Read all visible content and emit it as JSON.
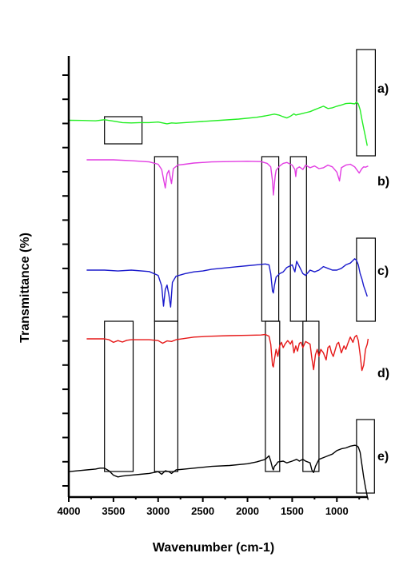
{
  "chart_data": {
    "type": "line",
    "title": "",
    "xlabel": "Wavenumber (cm-1)",
    "ylabel": "Transmittance (%)",
    "xlim": [
      4000,
      600
    ],
    "x_reversed": true,
    "x_ticks": [
      4000,
      3500,
      3000,
      2500,
      2000,
      1500,
      1000
    ],
    "y_tick_count": 18,
    "y_tick_labels_shown": false,
    "grid": false,
    "series": [
      {
        "name": "a)",
        "color": "#22ee22",
        "points": [
          [
            4000,
            0.25
          ],
          [
            3850,
            0.24
          ],
          [
            3700,
            0.22
          ],
          [
            3600,
            0.28
          ],
          [
            3500,
            0.2
          ],
          [
            3400,
            0.12
          ],
          [
            3300,
            0.1
          ],
          [
            3200,
            0.12
          ],
          [
            3100,
            0.12
          ],
          [
            3000,
            0.15
          ],
          [
            2950,
            0.1
          ],
          [
            2900,
            0.05
          ],
          [
            2850,
            0.1
          ],
          [
            2800,
            0.08
          ],
          [
            2700,
            0.12
          ],
          [
            2600,
            0.15
          ],
          [
            2500,
            0.18
          ],
          [
            2300,
            0.25
          ],
          [
            2100,
            0.32
          ],
          [
            1900,
            0.42
          ],
          [
            1800,
            0.5
          ],
          [
            1700,
            0.6
          ],
          [
            1650,
            0.55
          ],
          [
            1600,
            0.45
          ],
          [
            1560,
            0.38
          ],
          [
            1520,
            0.48
          ],
          [
            1480,
            0.62
          ],
          [
            1460,
            0.55
          ],
          [
            1400,
            0.62
          ],
          [
            1350,
            0.68
          ],
          [
            1300,
            0.74
          ],
          [
            1250,
            0.85
          ],
          [
            1200,
            0.95
          ],
          [
            1150,
            1.05
          ],
          [
            1100,
            0.92
          ],
          [
            1050,
            0.96
          ],
          [
            1000,
            1.05
          ],
          [
            950,
            1.12
          ],
          [
            900,
            1.2
          ],
          [
            850,
            1.22
          ],
          [
            800,
            1.18
          ],
          [
            780,
            1.28
          ],
          [
            760,
            1.18
          ],
          [
            740,
            0.85
          ],
          [
            720,
            0.3
          ],
          [
            700,
            -0.2
          ],
          [
            680,
            -0.7
          ],
          [
            660,
            -1.2
          ]
        ]
      },
      {
        "name": "b)",
        "color": "#e23ce2",
        "points": [
          [
            3800,
            0.0
          ],
          [
            3500,
            0.0
          ],
          [
            3300,
            -0.05
          ],
          [
            3100,
            -0.12
          ],
          [
            3000,
            -0.25
          ],
          [
            2960,
            -0.55
          ],
          [
            2920,
            -1.6
          ],
          [
            2900,
            -0.8
          ],
          [
            2880,
            -0.6
          ],
          [
            2850,
            -1.35
          ],
          [
            2830,
            -0.5
          ],
          [
            2780,
            -0.3
          ],
          [
            2700,
            -0.25
          ],
          [
            2600,
            -0.18
          ],
          [
            2400,
            -0.12
          ],
          [
            2200,
            -0.1
          ],
          [
            2000,
            -0.08
          ],
          [
            1850,
            -0.1
          ],
          [
            1780,
            -0.2
          ],
          [
            1740,
            -0.4
          ],
          [
            1720,
            -1.2
          ],
          [
            1710,
            -2.0
          ],
          [
            1700,
            -1.4
          ],
          [
            1690,
            -0.9
          ],
          [
            1680,
            -0.6
          ],
          [
            1640,
            -0.35
          ],
          [
            1600,
            -0.2
          ],
          [
            1560,
            -0.15
          ],
          [
            1500,
            -0.3
          ],
          [
            1470,
            -0.55
          ],
          [
            1460,
            -0.95
          ],
          [
            1450,
            -0.5
          ],
          [
            1420,
            -0.4
          ],
          [
            1380,
            -0.55
          ],
          [
            1350,
            -0.3
          ],
          [
            1300,
            -0.45
          ],
          [
            1250,
            -0.35
          ],
          [
            1200,
            -0.5
          ],
          [
            1150,
            -0.45
          ],
          [
            1100,
            -0.3
          ],
          [
            1050,
            -0.4
          ],
          [
            1000,
            -0.7
          ],
          [
            970,
            -1.2
          ],
          [
            950,
            -0.45
          ],
          [
            900,
            -0.3
          ],
          [
            850,
            -0.25
          ],
          [
            800,
            -0.4
          ],
          [
            750,
            -0.75
          ],
          [
            720,
            -0.5
          ],
          [
            700,
            -0.4
          ],
          [
            680,
            -0.42
          ],
          [
            650,
            -0.35
          ]
        ]
      },
      {
        "name": "c)",
        "color": "#1a1acc",
        "points": [
          [
            3800,
            0.0
          ],
          [
            3600,
            0.0
          ],
          [
            3450,
            -0.05
          ],
          [
            3300,
            0.0
          ],
          [
            3100,
            -0.08
          ],
          [
            3000,
            -0.3
          ],
          [
            2960,
            -0.9
          ],
          [
            2940,
            -2.05
          ],
          [
            2920,
            -1.1
          ],
          [
            2900,
            -0.85
          ],
          [
            2880,
            -1.4
          ],
          [
            2860,
            -2.1
          ],
          [
            2840,
            -0.7
          ],
          [
            2800,
            -0.35
          ],
          [
            2700,
            -0.2
          ],
          [
            2600,
            -0.1
          ],
          [
            2500,
            -0.05
          ],
          [
            2400,
            0.05
          ],
          [
            2300,
            0.1
          ],
          [
            2200,
            0.15
          ],
          [
            2100,
            0.2
          ],
          [
            2000,
            0.25
          ],
          [
            1900,
            0.3
          ],
          [
            1800,
            0.35
          ],
          [
            1760,
            0.3
          ],
          [
            1740,
            -0.2
          ],
          [
            1720,
            -1.2
          ],
          [
            1710,
            -1.3
          ],
          [
            1700,
            -0.9
          ],
          [
            1680,
            -0.4
          ],
          [
            1640,
            -0.2
          ],
          [
            1600,
            -0.1
          ],
          [
            1560,
            0.15
          ],
          [
            1500,
            0.3
          ],
          [
            1470,
            -0.1
          ],
          [
            1450,
            0.5
          ],
          [
            1420,
            0.2
          ],
          [
            1380,
            -0.2
          ],
          [
            1350,
            -0.3
          ],
          [
            1300,
            0.0
          ],
          [
            1250,
            -0.1
          ],
          [
            1200,
            0.0
          ],
          [
            1150,
            0.2
          ],
          [
            1100,
            0.1
          ],
          [
            1050,
            0.0
          ],
          [
            1000,
            0.0
          ],
          [
            950,
            0.1
          ],
          [
            900,
            0.3
          ],
          [
            850,
            0.4
          ],
          [
            800,
            0.65
          ],
          [
            780,
            0.55
          ],
          [
            760,
            0.3
          ],
          [
            740,
            -0.2
          ],
          [
            720,
            -0.5
          ],
          [
            700,
            -0.9
          ],
          [
            680,
            -1.2
          ],
          [
            660,
            -1.5
          ]
        ]
      },
      {
        "name": "d)",
        "color": "#e61717",
        "points": [
          [
            3800,
            0.0
          ],
          [
            3600,
            0.0
          ],
          [
            3550,
            -0.05
          ],
          [
            3500,
            -0.2
          ],
          [
            3450,
            -0.1
          ],
          [
            3400,
            -0.18
          ],
          [
            3350,
            -0.08
          ],
          [
            3300,
            -0.05
          ],
          [
            3100,
            -0.05
          ],
          [
            3000,
            -0.1
          ],
          [
            2950,
            -0.25
          ],
          [
            2900,
            -0.12
          ],
          [
            2850,
            -0.15
          ],
          [
            2800,
            -0.05
          ],
          [
            2600,
            0.1
          ],
          [
            2400,
            0.15
          ],
          [
            2200,
            0.18
          ],
          [
            2000,
            0.2
          ],
          [
            1850,
            0.22
          ],
          [
            1800,
            0.25
          ],
          [
            1760,
            0.15
          ],
          [
            1740,
            -0.3
          ],
          [
            1720,
            -1.5
          ],
          [
            1710,
            -1.6
          ],
          [
            1700,
            -1.2
          ],
          [
            1680,
            -0.6
          ],
          [
            1660,
            -1.0
          ],
          [
            1640,
            -0.4
          ],
          [
            1620,
            -0.2
          ],
          [
            1600,
            -0.5
          ],
          [
            1580,
            -0.3
          ],
          [
            1550,
            -0.1
          ],
          [
            1520,
            -0.3
          ],
          [
            1500,
            -0.1
          ],
          [
            1480,
            -0.8
          ],
          [
            1460,
            -0.4
          ],
          [
            1440,
            -0.7
          ],
          [
            1420,
            -0.25
          ],
          [
            1400,
            -0.2
          ],
          [
            1380,
            -0.5
          ],
          [
            1350,
            -0.15
          ],
          [
            1300,
            -0.3
          ],
          [
            1280,
            -1.1
          ],
          [
            1260,
            -1.75
          ],
          [
            1240,
            -0.9
          ],
          [
            1220,
            -0.6
          ],
          [
            1200,
            -1.0
          ],
          [
            1180,
            -0.6
          ],
          [
            1150,
            -0.8
          ],
          [
            1120,
            -1.2
          ],
          [
            1100,
            -0.5
          ],
          [
            1080,
            -0.4
          ],
          [
            1060,
            -0.8
          ],
          [
            1040,
            -1.0
          ],
          [
            1000,
            -0.3
          ],
          [
            980,
            -0.2
          ],
          [
            950,
            -0.8
          ],
          [
            920,
            -0.4
          ],
          [
            900,
            -0.6
          ],
          [
            880,
            -0.3
          ],
          [
            850,
            0.1
          ],
          [
            820,
            -0.2
          ],
          [
            800,
            0.1
          ],
          [
            780,
            0.2
          ],
          [
            760,
            -0.1
          ],
          [
            740,
            -0.9
          ],
          [
            720,
            -1.8
          ],
          [
            700,
            -1.5
          ],
          [
            680,
            -0.6
          ],
          [
            660,
            -0.3
          ],
          [
            650,
            0.0
          ]
        ]
      },
      {
        "name": "e)",
        "color": "#000000",
        "points": [
          [
            4000,
            -0.6
          ],
          [
            3900,
            -0.55
          ],
          [
            3800,
            -0.5
          ],
          [
            3700,
            -0.45
          ],
          [
            3650,
            -0.4
          ],
          [
            3600,
            -0.4
          ],
          [
            3550,
            -0.55
          ],
          [
            3500,
            -0.8
          ],
          [
            3450,
            -0.9
          ],
          [
            3400,
            -0.85
          ],
          [
            3300,
            -0.8
          ],
          [
            3200,
            -0.75
          ],
          [
            3100,
            -0.7
          ],
          [
            3000,
            -0.6
          ],
          [
            2960,
            -0.75
          ],
          [
            2920,
            -0.55
          ],
          [
            2880,
            -0.6
          ],
          [
            2850,
            -0.7
          ],
          [
            2800,
            -0.5
          ],
          [
            2700,
            -0.45
          ],
          [
            2600,
            -0.4
          ],
          [
            2400,
            -0.3
          ],
          [
            2200,
            -0.25
          ],
          [
            2000,
            -0.15
          ],
          [
            1900,
            -0.05
          ],
          [
            1800,
            0.1
          ],
          [
            1760,
            0.3
          ],
          [
            1740,
            0.0
          ],
          [
            1720,
            -0.4
          ],
          [
            1710,
            -0.5
          ],
          [
            1700,
            -0.3
          ],
          [
            1680,
            -0.2
          ],
          [
            1660,
            -0.05
          ],
          [
            1600,
            0.0
          ],
          [
            1560,
            -0.1
          ],
          [
            1500,
            0.0
          ],
          [
            1450,
            0.1
          ],
          [
            1420,
            0.0
          ],
          [
            1380,
            0.1
          ],
          [
            1350,
            0.0
          ],
          [
            1300,
            -0.1
          ],
          [
            1280,
            -0.5
          ],
          [
            1260,
            -0.65
          ],
          [
            1240,
            -0.3
          ],
          [
            1220,
            -0.1
          ],
          [
            1200,
            0.1
          ],
          [
            1150,
            0.2
          ],
          [
            1100,
            0.3
          ],
          [
            1050,
            0.4
          ],
          [
            1000,
            0.6
          ],
          [
            950,
            0.7
          ],
          [
            900,
            0.75
          ],
          [
            850,
            0.85
          ],
          [
            800,
            0.9
          ],
          [
            780,
            0.88
          ],
          [
            760,
            0.8
          ],
          [
            740,
            0.5
          ],
          [
            720,
            -0.2
          ],
          [
            700,
            -0.9
          ],
          [
            680,
            -1.5
          ],
          [
            660,
            -2.0
          ],
          [
            650,
            -2.2
          ]
        ]
      }
    ],
    "highlight_boxes": [
      {
        "x_from": 3600,
        "x_to": 3180,
        "row_from": "a)",
        "row_to": "a)"
      },
      {
        "x_from": 3040,
        "x_to": 2780,
        "row_from": "b)",
        "row_to": "c)"
      },
      {
        "x_from": 1840,
        "x_to": 1650,
        "row_from": "b)",
        "row_to": "c)"
      },
      {
        "x_from": 1520,
        "x_to": 1340,
        "row_from": "b)",
        "row_to": "c)"
      },
      {
        "x_from": 780,
        "x_to": 570,
        "row_from": "a)",
        "row_to": "a)"
      },
      {
        "x_from": 780,
        "x_to": 570,
        "row_from": "c)",
        "row_to": "c)"
      },
      {
        "x_from": 3600,
        "x_to": 3280,
        "row_from": "d)",
        "row_to": "e)"
      },
      {
        "x_from": 3040,
        "x_to": 2780,
        "row_from": "d)",
        "row_to": "e)"
      },
      {
        "x_from": 1800,
        "x_to": 1640,
        "row_from": "d)",
        "row_to": "e)"
      },
      {
        "x_from": 1380,
        "x_to": 1200,
        "row_from": "d)",
        "row_to": "e)"
      },
      {
        "x_from": 780,
        "x_to": 580,
        "row_from": "e)",
        "row_to": "e)"
      }
    ]
  }
}
